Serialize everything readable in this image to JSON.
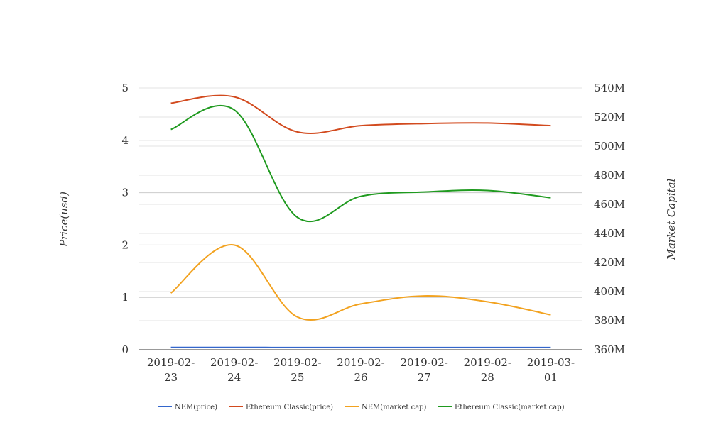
{
  "chart_data": {
    "type": "line",
    "title": "",
    "x": [
      "2019-02-23",
      "2019-02-24",
      "2019-02-25",
      "2019-02-26",
      "2019-02-27",
      "2019-02-28",
      "2019-03-01"
    ],
    "x_tick_labels": [
      [
        "2019-02-",
        "23"
      ],
      [
        "2019-02-",
        "24"
      ],
      [
        "2019-02-",
        "25"
      ],
      [
        "2019-02-",
        "26"
      ],
      [
        "2019-02-",
        "27"
      ],
      [
        "2019-02-",
        "28"
      ],
      [
        "2019-03-",
        "01"
      ]
    ],
    "ylabel_left": "Price(usd)",
    "ylabel_right": "Market Capital",
    "ylim_left": [
      0,
      5
    ],
    "ylim_right": [
      360000000,
      540000000
    ],
    "left_ticks": [
      {
        "value": 0,
        "label": "0"
      },
      {
        "value": 1,
        "label": "1"
      },
      {
        "value": 2,
        "label": "2"
      },
      {
        "value": 3,
        "label": "3"
      },
      {
        "value": 4,
        "label": "4"
      },
      {
        "value": 5,
        "label": "5"
      }
    ],
    "right_ticks": [
      {
        "value": 360000000,
        "label": "360M"
      },
      {
        "value": 380000000,
        "label": "380M"
      },
      {
        "value": 400000000,
        "label": "400M"
      },
      {
        "value": 420000000,
        "label": "420M"
      },
      {
        "value": 440000000,
        "label": "440M"
      },
      {
        "value": 460000000,
        "label": "460M"
      },
      {
        "value": 480000000,
        "label": "480M"
      },
      {
        "value": 500000000,
        "label": "500M"
      },
      {
        "value": 520000000,
        "label": "520M"
      },
      {
        "value": 540000000,
        "label": "540M"
      }
    ],
    "grid": true,
    "legend_position": "bottom",
    "series": [
      {
        "name": "NEM(price)",
        "axis": "left",
        "color": "#3366cc",
        "values": [
          0.043,
          0.045,
          0.042,
          0.042,
          0.042,
          0.042,
          0.042
        ]
      },
      {
        "name": "Ethereum Classic(price)",
        "axis": "left",
        "color": "#d24a1e",
        "values": [
          4.71,
          4.83,
          4.16,
          4.28,
          4.32,
          4.33,
          4.28
        ]
      },
      {
        "name": "NEM(market cap)",
        "axis": "right",
        "color": "#f2a21f",
        "values": [
          399000000,
          432000000,
          382500000,
          391500000,
          397000000,
          393000000,
          384000000
        ]
      },
      {
        "name": "Ethereum Classic(market cap)",
        "axis": "right",
        "color": "#1f9a1f",
        "values": [
          511500000,
          525000000,
          451000000,
          465500000,
          468500000,
          469500000,
          464500000
        ]
      }
    ]
  }
}
